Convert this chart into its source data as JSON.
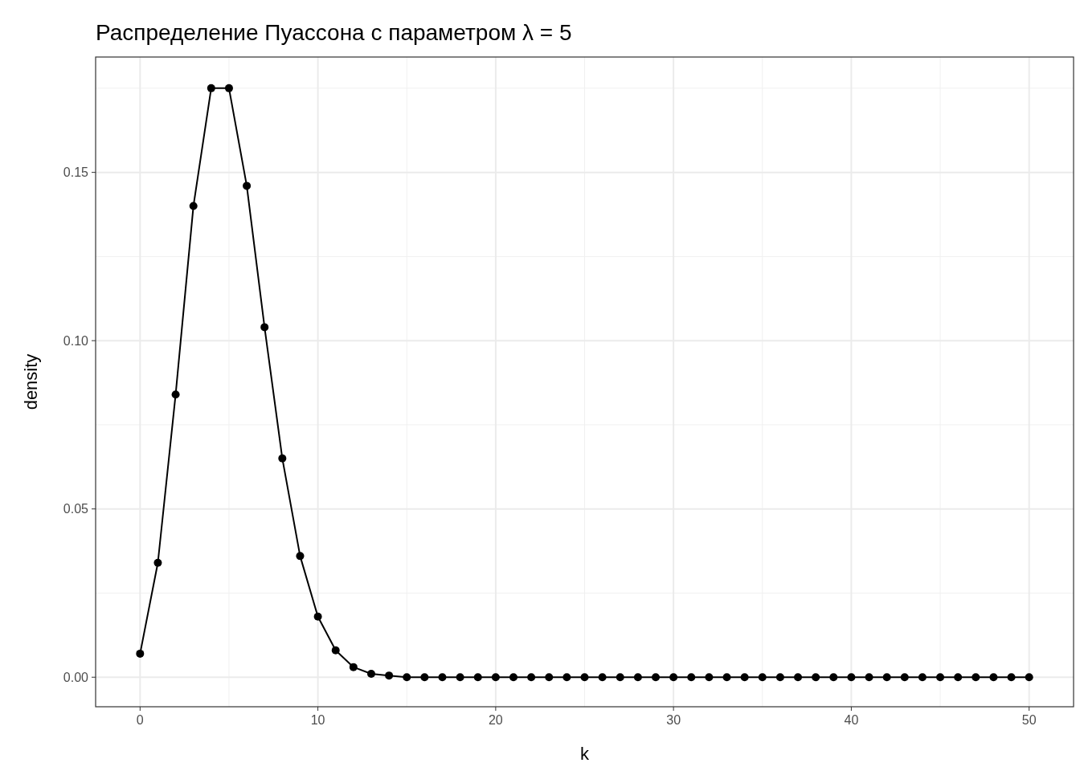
{
  "chart_data": {
    "type": "line",
    "title": "Распределение Пуассона с параметром λ = 5",
    "xlabel": "k",
    "ylabel": "density",
    "x": [
      0,
      1,
      2,
      3,
      4,
      5,
      6,
      7,
      8,
      9,
      10,
      11,
      12,
      13,
      14,
      15,
      16,
      17,
      18,
      19,
      20,
      21,
      22,
      23,
      24,
      25,
      26,
      27,
      28,
      29,
      30,
      31,
      32,
      33,
      34,
      35,
      36,
      37,
      38,
      39,
      40,
      41,
      42,
      43,
      44,
      45,
      46,
      47,
      48,
      49,
      50
    ],
    "series": [
      {
        "color": "#000000",
        "values": [
          0.007,
          0.034,
          0.084,
          0.14,
          0.175,
          0.175,
          0.146,
          0.104,
          0.065,
          0.036,
          0.018,
          0.008,
          0.003,
          0.001,
          0.0005,
          0,
          0,
          0,
          0,
          0,
          0,
          0,
          0,
          0,
          0,
          0,
          0,
          0,
          0,
          0,
          0,
          0,
          0,
          0,
          0,
          0,
          0,
          0,
          0,
          0,
          0,
          0,
          0,
          0,
          0,
          0,
          0,
          0,
          0,
          0,
          0
        ]
      }
    ],
    "xlim": [
      -2.5,
      52.5
    ],
    "ylim": [
      -0.008775,
      0.184275
    ],
    "xticks": [
      0,
      10,
      20,
      30,
      40,
      50
    ],
    "yticks": [
      {
        "value": 0,
        "label": "0.00"
      },
      {
        "value": 0.05,
        "label": "0.05"
      },
      {
        "value": 0.1,
        "label": "0.10"
      },
      {
        "value": 0.15,
        "label": "0.15"
      }
    ],
    "grid": true,
    "marker": "circle",
    "line_style": "solid"
  }
}
